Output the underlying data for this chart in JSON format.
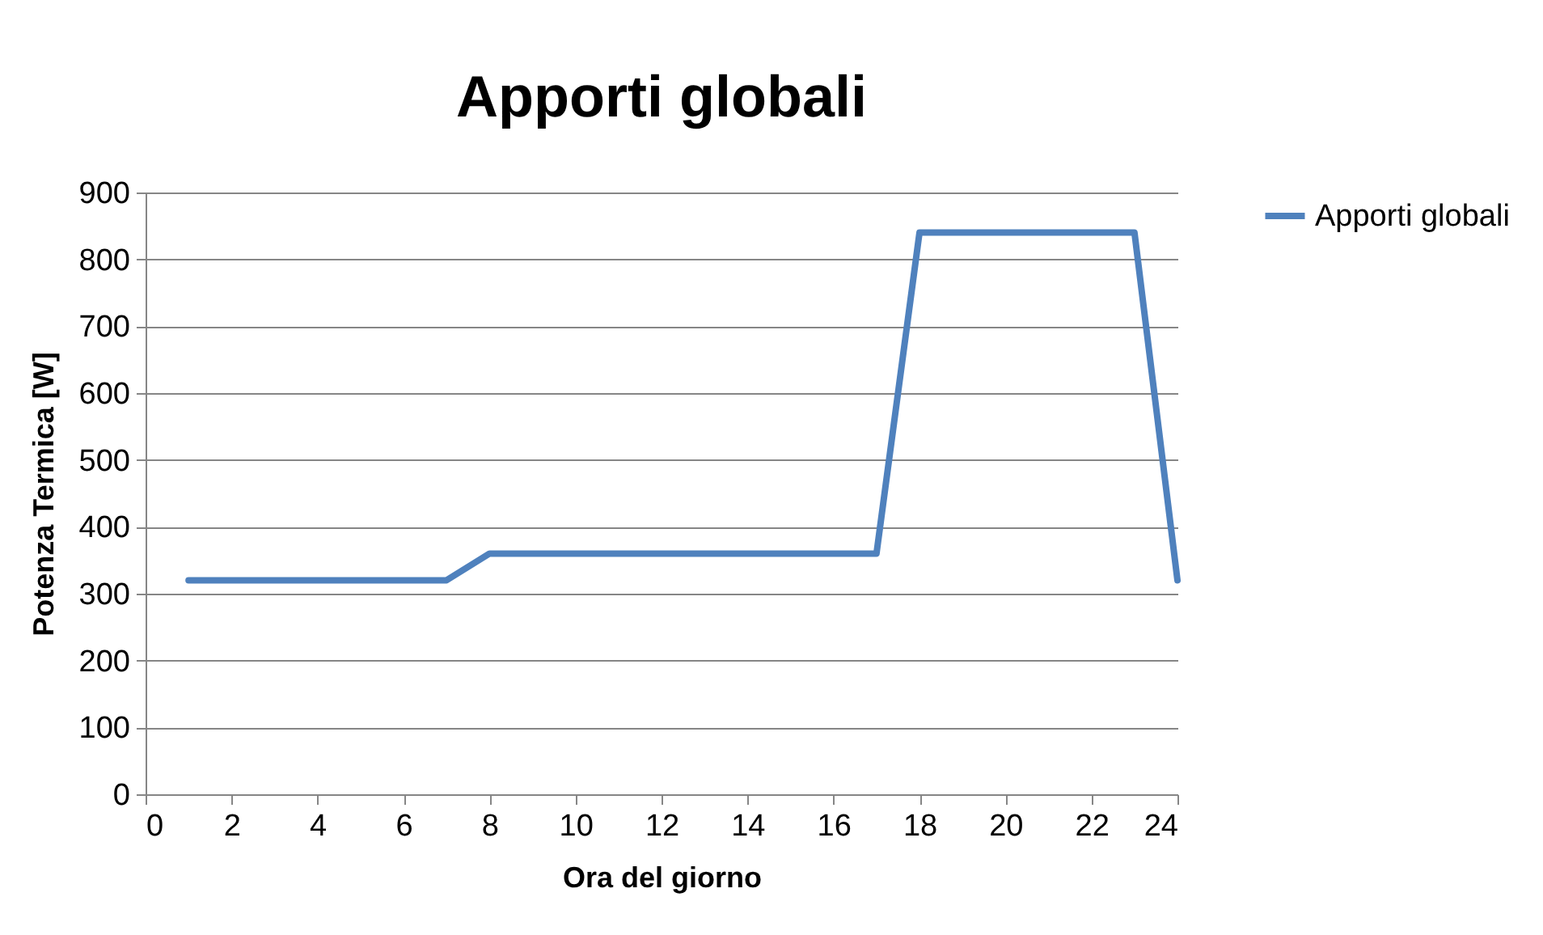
{
  "chart_data": {
    "type": "line",
    "title": "Apporti globali",
    "xlabel": "Ora del giorno",
    "ylabel": "Potenza Termica [W]",
    "x": [
      1,
      2,
      3,
      4,
      5,
      6,
      7,
      8,
      9,
      10,
      11,
      12,
      13,
      14,
      15,
      16,
      17,
      18,
      19,
      20,
      21,
      22,
      23,
      24
    ],
    "series": [
      {
        "name": "Apporti globali",
        "color": "#4f81bd",
        "values": [
          320,
          320,
          320,
          320,
          320,
          320,
          320,
          360,
          360,
          360,
          360,
          360,
          360,
          360,
          360,
          360,
          360,
          840,
          840,
          840,
          840,
          840,
          840,
          320
        ]
      }
    ],
    "xlim": [
      0,
      24
    ],
    "xticks": [
      0,
      2,
      4,
      6,
      8,
      10,
      12,
      14,
      16,
      18,
      20,
      22,
      24
    ],
    "ylim": [
      0,
      900
    ],
    "yticks": [
      0,
      100,
      200,
      300,
      400,
      500,
      600,
      700,
      800,
      900
    ],
    "grid": "y",
    "legend": "right",
    "marker": "none",
    "line_style": "solid"
  }
}
